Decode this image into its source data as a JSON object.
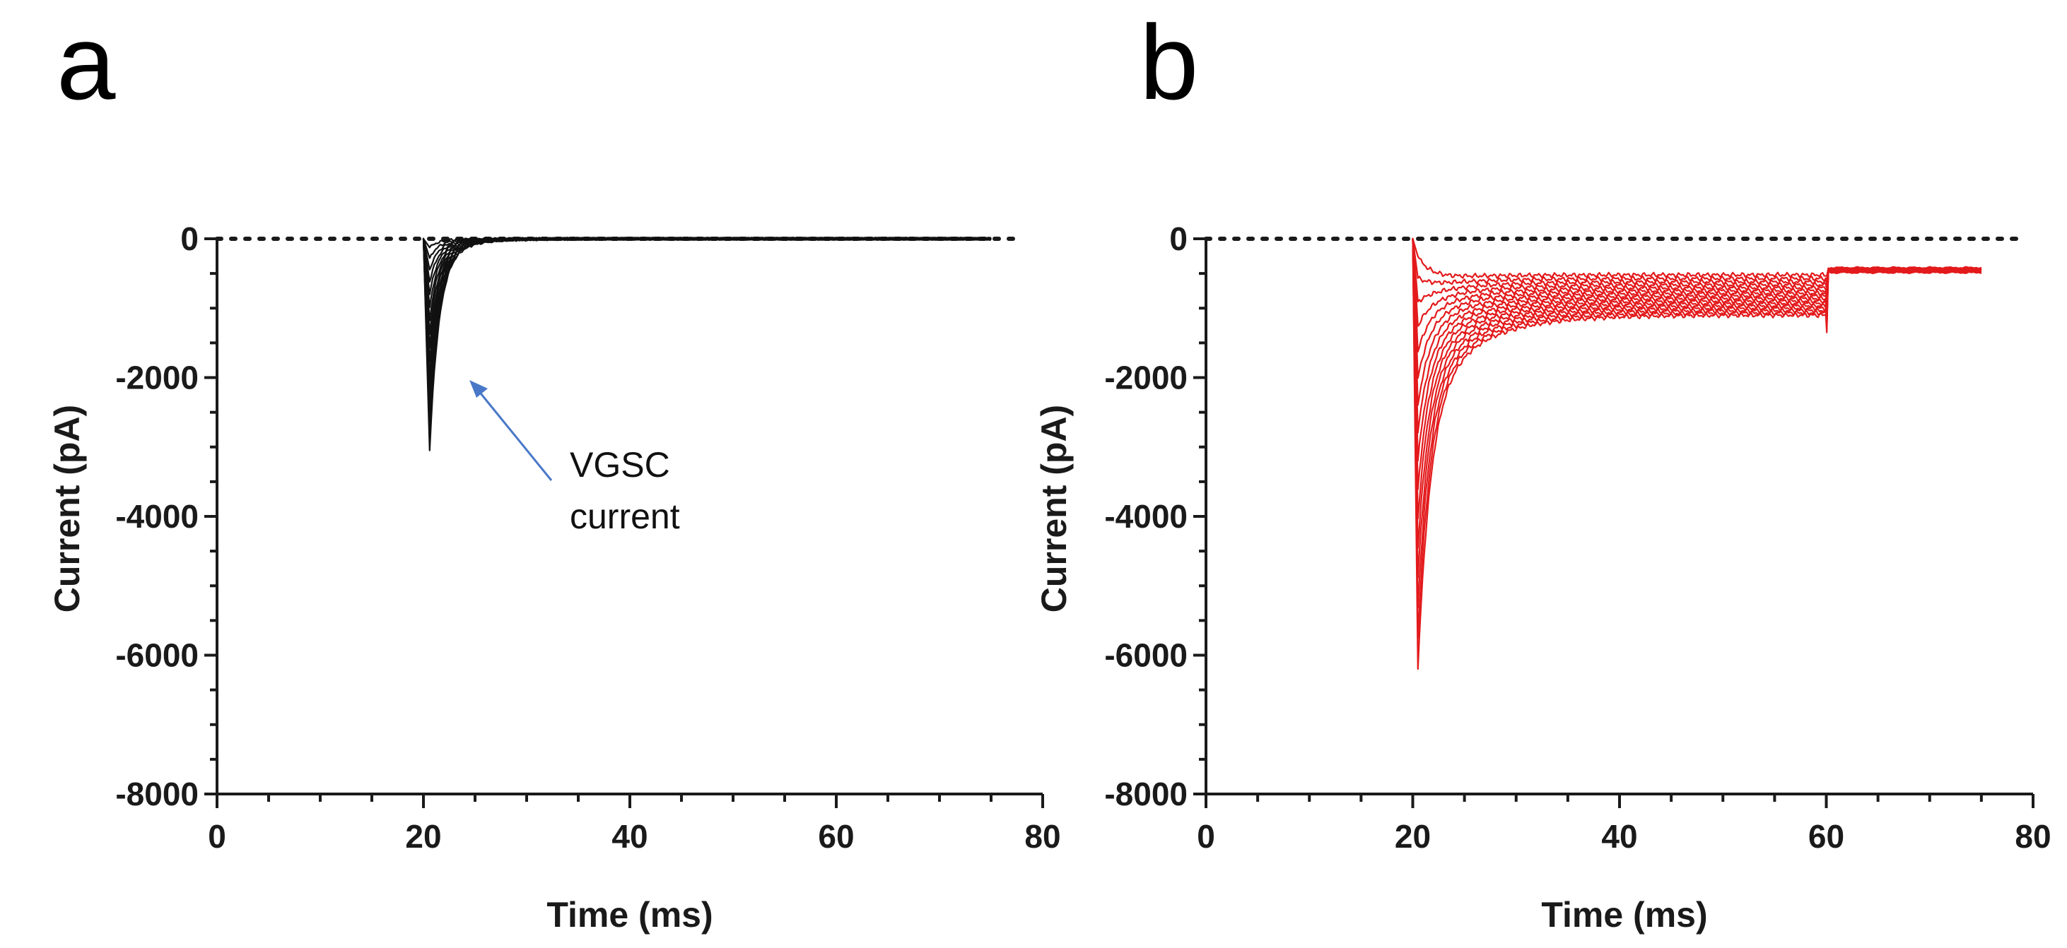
{
  "chart_data": [
    {
      "panel": "a",
      "type": "line",
      "series_color": "#111111",
      "xlabel": "Time (ms)",
      "ylabel": "Current (pA)",
      "xlim": [
        0,
        80
      ],
      "ylim": [
        -8000,
        0
      ],
      "x_ticks": [
        0,
        20,
        40,
        60,
        80
      ],
      "y_ticks": [
        0,
        -2000,
        -4000,
        -6000,
        -8000
      ],
      "x_tick_labels": [
        "0",
        "20",
        "40",
        "60",
        "80"
      ],
      "y_tick_labels": [
        "0",
        "-2000",
        "-4000",
        "-6000",
        "-8000"
      ],
      "zero_reference_line": true,
      "trace_family": {
        "count": 16,
        "onset_ms": 20,
        "peak_time_ms": 20.6,
        "end_ms": 75,
        "min_peak_pA": -3050,
        "decay_tau_ms": 0.9,
        "slow_component_pA": -260,
        "slow_tau_ms": 3.0,
        "sustained_pA": 0
      },
      "annotation": {
        "lines": [
          "VGSC",
          "current"
        ],
        "arrow_to": [
          24,
          -2050
        ]
      }
    },
    {
      "panel": "b",
      "type": "line",
      "series_color": "#e31a1c",
      "xlabel": "Time (ms)",
      "ylabel": "Current (pA)",
      "xlim": [
        0,
        80
      ],
      "ylim": [
        -8000,
        0
      ],
      "x_ticks": [
        0,
        20,
        40,
        60,
        80
      ],
      "y_ticks": [
        0,
        -2000,
        -4000,
        -6000,
        -8000
      ],
      "x_tick_labels": [
        "0",
        "20",
        "40",
        "60",
        "80"
      ],
      "y_tick_labels": [
        "0",
        "-2000",
        "-4000",
        "-6000",
        "-8000"
      ],
      "zero_reference_line": true,
      "trace_family": {
        "count": 16,
        "onset_ms": 20,
        "peak_time_ms": 20.5,
        "step_end_ms": 60,
        "end_ms": 75,
        "min_peak_pA": -6200,
        "decay_tau_ms": 1.2,
        "slow_component_pA": -1300,
        "slow_tau_ms": 5.0,
        "sustained_min_pA": -1100,
        "sustained_max_pA": -450,
        "tail_pA": -420
      },
      "annotation": null
    }
  ]
}
